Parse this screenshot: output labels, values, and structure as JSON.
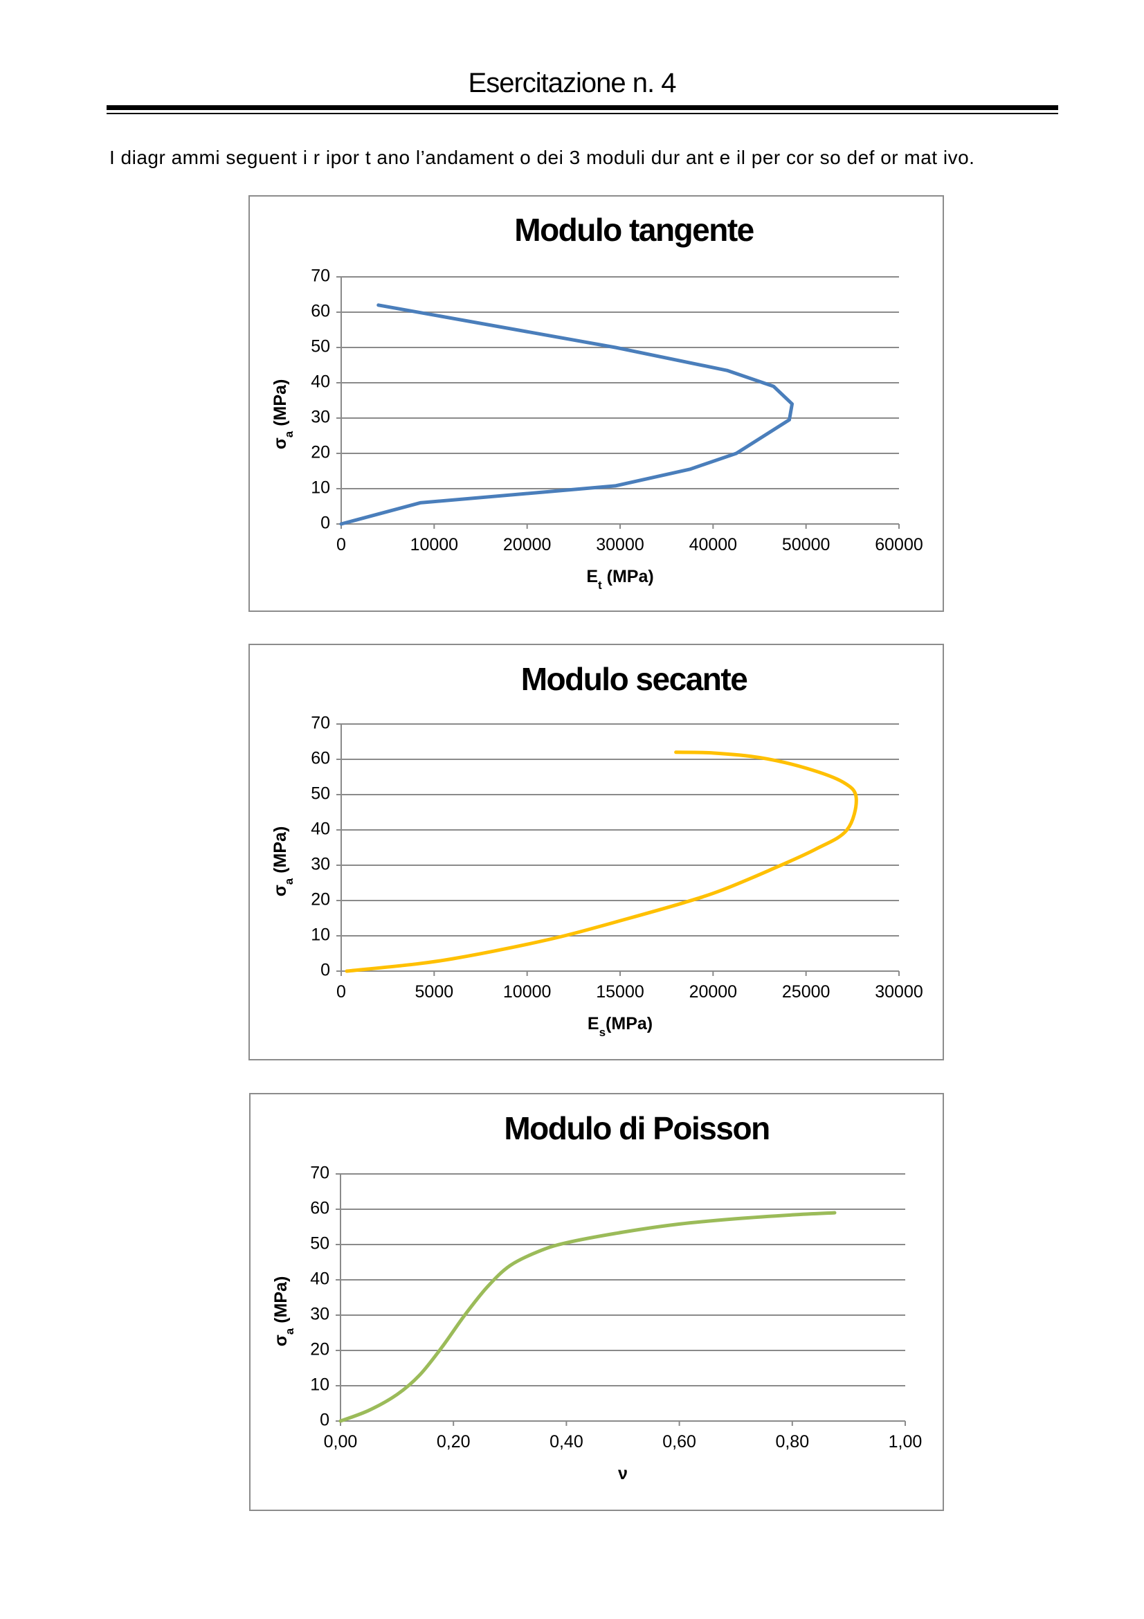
{
  "header": {
    "title": "Esercitazione n. 4"
  },
  "intro": {
    "text": "I diagr ammi seguent i r ipor t ano l’andament o dei 3 moduli dur ant e il per cor so def or mat ivo."
  },
  "chart_data": [
    {
      "type": "line",
      "title": "Modulo tangente",
      "xlabel": {
        "main": "E",
        "sub": "t",
        "unit": " (MPa)"
      },
      "ylabel": {
        "main": "σ",
        "sub": "a",
        "unit": " (MPa)"
      },
      "xlim": [
        0,
        60000
      ],
      "ylim": [
        0,
        70
      ],
      "xticks": [
        0,
        10000,
        20000,
        30000,
        40000,
        50000,
        60000
      ],
      "xtick_labels": [
        "0",
        "10000",
        "20000",
        "30000",
        "40000",
        "50000",
        "60000"
      ],
      "yticks": [
        0,
        10,
        20,
        30,
        40,
        50,
        60,
        70
      ],
      "ytick_labels": [
        "0",
        "10",
        "20",
        "30",
        "40",
        "50",
        "60",
        "70"
      ],
      "grid": true,
      "legend": "none",
      "color": "#4a7ebb",
      "smooth": false,
      "series": [
        {
          "x": [
            0,
            8500,
            26000,
            29500,
            37500,
            42500,
            45500,
            48200,
            48500,
            46500,
            41500,
            29500,
            4000
          ],
          "y": [
            0,
            6,
            10,
            10.8,
            15.5,
            20,
            25,
            29.5,
            34,
            39,
            43.5,
            50,
            62
          ]
        }
      ]
    },
    {
      "type": "line",
      "title": "Modulo secante",
      "xlabel": {
        "main": "E",
        "sub": "s",
        "unit": "(MPa)"
      },
      "ylabel": {
        "main": "σ",
        "sub": "a",
        "unit": " (MPa)"
      },
      "xlim": [
        0,
        30000
      ],
      "ylim": [
        0,
        70
      ],
      "xticks": [
        0,
        5000,
        10000,
        15000,
        20000,
        25000,
        30000
      ],
      "xtick_labels": [
        "0",
        "5000",
        "10000",
        "15000",
        "20000",
        "25000",
        "30000"
      ],
      "yticks": [
        0,
        10,
        20,
        30,
        40,
        50,
        60,
        70
      ],
      "ytick_labels": [
        "0",
        "10",
        "20",
        "30",
        "40",
        "50",
        "60",
        "70"
      ],
      "grid": true,
      "legend": "none",
      "color": "#ffc000",
      "smooth": true,
      "series": [
        {
          "x": [
            300,
            4000,
            6000,
            9000,
            12000,
            15500,
            18500,
            20500,
            23000,
            25500,
            27200,
            27700,
            27000,
            25000,
            22500,
            20000,
            18000
          ],
          "y": [
            0,
            2,
            3.5,
            6.5,
            10,
            15,
            19.5,
            23,
            28.5,
            34.5,
            40,
            49,
            53.5,
            57.5,
            60.5,
            61.8,
            62
          ]
        }
      ]
    },
    {
      "type": "line",
      "title": "Modulo di Poisson",
      "xlabel": {
        "main": "ν",
        "sub": "",
        "unit": ""
      },
      "ylabel": {
        "main": "σ",
        "sub": "a",
        "unit": " (MPa)"
      },
      "xlim": [
        0,
        1
      ],
      "ylim": [
        0,
        70
      ],
      "xticks": [
        0,
        0.2,
        0.4,
        0.6,
        0.8,
        1.0
      ],
      "xtick_labels": [
        "0,00",
        "0,20",
        "0,40",
        "0,60",
        "0,80",
        "1,00"
      ],
      "yticks": [
        0,
        10,
        20,
        30,
        40,
        50,
        60,
        70
      ],
      "ytick_labels": [
        "0",
        "10",
        "20",
        "30",
        "40",
        "50",
        "60",
        "70"
      ],
      "grid": true,
      "legend": "none",
      "color": "#9bbb59",
      "smooth": true,
      "series": [
        {
          "x": [
            0,
            0.05,
            0.1,
            0.14,
            0.18,
            0.22,
            0.26,
            0.3,
            0.35,
            0.4,
            0.5,
            0.6,
            0.7,
            0.8,
            0.875
          ],
          "y": [
            0,
            3,
            7.5,
            13,
            21,
            30,
            38,
            44,
            48,
            50.5,
            53.5,
            55.8,
            57.3,
            58.4,
            59
          ]
        }
      ]
    }
  ]
}
